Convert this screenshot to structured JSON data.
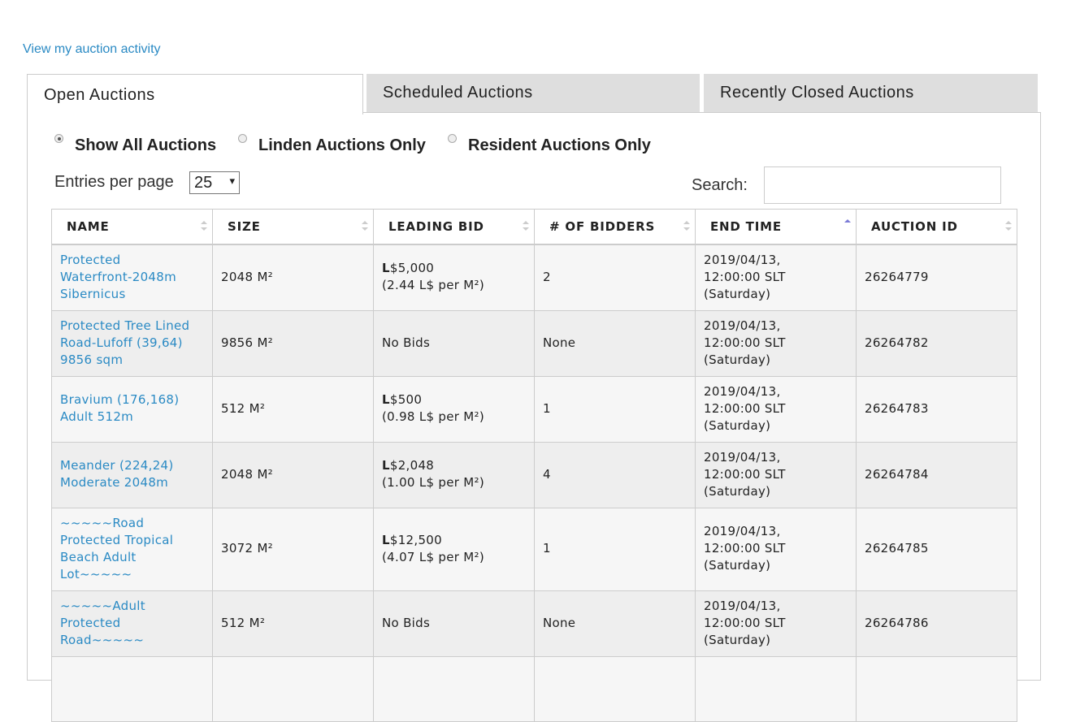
{
  "activity_link": "View my auction activity",
  "tabs": [
    "Open Auctions",
    "Scheduled Auctions",
    "Recently Closed Auctions"
  ],
  "filters": [
    "Show All Auctions",
    "Linden Auctions Only",
    "Resident Auctions Only"
  ],
  "entries_label": "Entries per page",
  "entries_value": "25",
  "search_label": "Search:",
  "table": {
    "headers": [
      "NAME",
      "SIZE",
      "LEADING BID",
      "# OF BIDDERS",
      "END TIME",
      "AUCTION ID"
    ],
    "rows": [
      {
        "name": [
          "Protected",
          "Waterfront-2048m",
          "Sibernicus"
        ],
        "size": "2048 M²",
        "leading_bid": [
          "L$5,000",
          "(2.44 L$ per M²)"
        ],
        "bidders": "2",
        "end_time": [
          "2019/04/13,",
          "12:00:00 SLT",
          "(Saturday)"
        ],
        "auction_id": "26264779"
      },
      {
        "name": [
          "Protected Tree Lined",
          "Road-Lufoff (39,64)",
          "9856 sqm"
        ],
        "size": "9856 M²",
        "leading_bid": [
          "No Bids"
        ],
        "bidders": "None",
        "end_time": [
          "2019/04/13,",
          "12:00:00 SLT",
          "(Saturday)"
        ],
        "auction_id": "26264782"
      },
      {
        "name": [
          "Bravium (176,168)",
          "Adult 512m"
        ],
        "size": "512 M²",
        "leading_bid": [
          "L$500",
          "(0.98 L$ per M²)"
        ],
        "bidders": "1",
        "end_time": [
          "2019/04/13,",
          "12:00:00 SLT",
          "(Saturday)"
        ],
        "auction_id": "26264783"
      },
      {
        "name": [
          "Meander (224,24)",
          "Moderate 2048m"
        ],
        "size": "2048 M²",
        "leading_bid": [
          "L$2,048",
          "(1.00 L$ per M²)"
        ],
        "bidders": "4",
        "end_time": [
          "2019/04/13,",
          "12:00:00 SLT",
          "(Saturday)"
        ],
        "auction_id": "26264784"
      },
      {
        "name": [
          "~~~~~Road",
          "Protected Tropical",
          "Beach Adult",
          "Lot~~~~~"
        ],
        "size": "3072 M²",
        "leading_bid": [
          "L$12,500",
          "(4.07 L$ per M²)"
        ],
        "bidders": "1",
        "end_time": [
          "2019/04/13,",
          "12:00:00 SLT",
          "(Saturday)"
        ],
        "auction_id": "26264785"
      },
      {
        "name": [
          "~~~~~Adult",
          "Protected",
          "Road~~~~~"
        ],
        "size": "512 M²",
        "leading_bid": [
          "No Bids"
        ],
        "bidders": "None",
        "end_time": [
          "2019/04/13,",
          "12:00:00 SLT",
          "(Saturday)"
        ],
        "auction_id": "26264786"
      }
    ]
  }
}
